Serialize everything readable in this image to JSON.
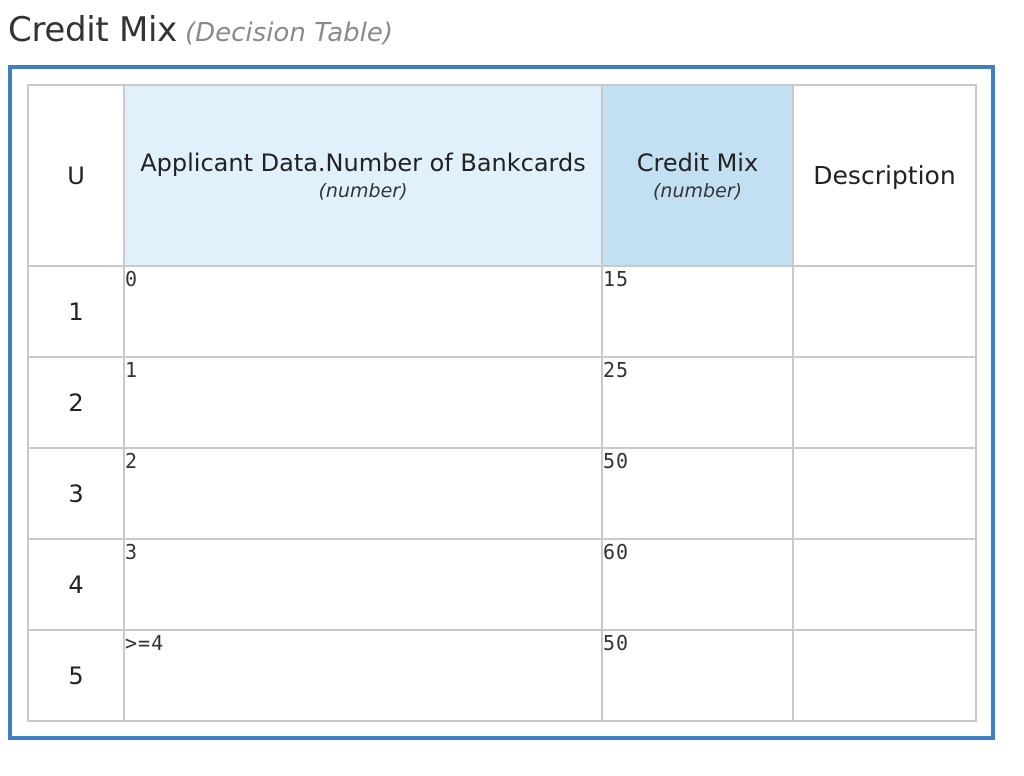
{
  "title": {
    "name": "Credit Mix",
    "kind": "(Decision Table)"
  },
  "table": {
    "hit_policy": "U",
    "input_header": {
      "label": "Applicant Data.Number of Bankcards",
      "type": "(number)"
    },
    "output_header": {
      "label": "Credit Mix",
      "type": "(number)"
    },
    "annotation_header": "Description",
    "rules": [
      {
        "num": "1",
        "input": "0",
        "output": "15",
        "description": ""
      },
      {
        "num": "2",
        "input": "1",
        "output": "25",
        "description": ""
      },
      {
        "num": "3",
        "input": "2",
        "output": "50",
        "description": ""
      },
      {
        "num": "4",
        "input": "3",
        "output": "60",
        "description": ""
      },
      {
        "num": "5",
        "input": ">=4",
        "output": "50",
        "description": ""
      }
    ]
  },
  "colors": {
    "frame_border": "#3f7fc1",
    "input_header_bg": "#e1f1fb",
    "output_header_bg": "#c3e0f3",
    "grid": "#c9c9c9"
  }
}
